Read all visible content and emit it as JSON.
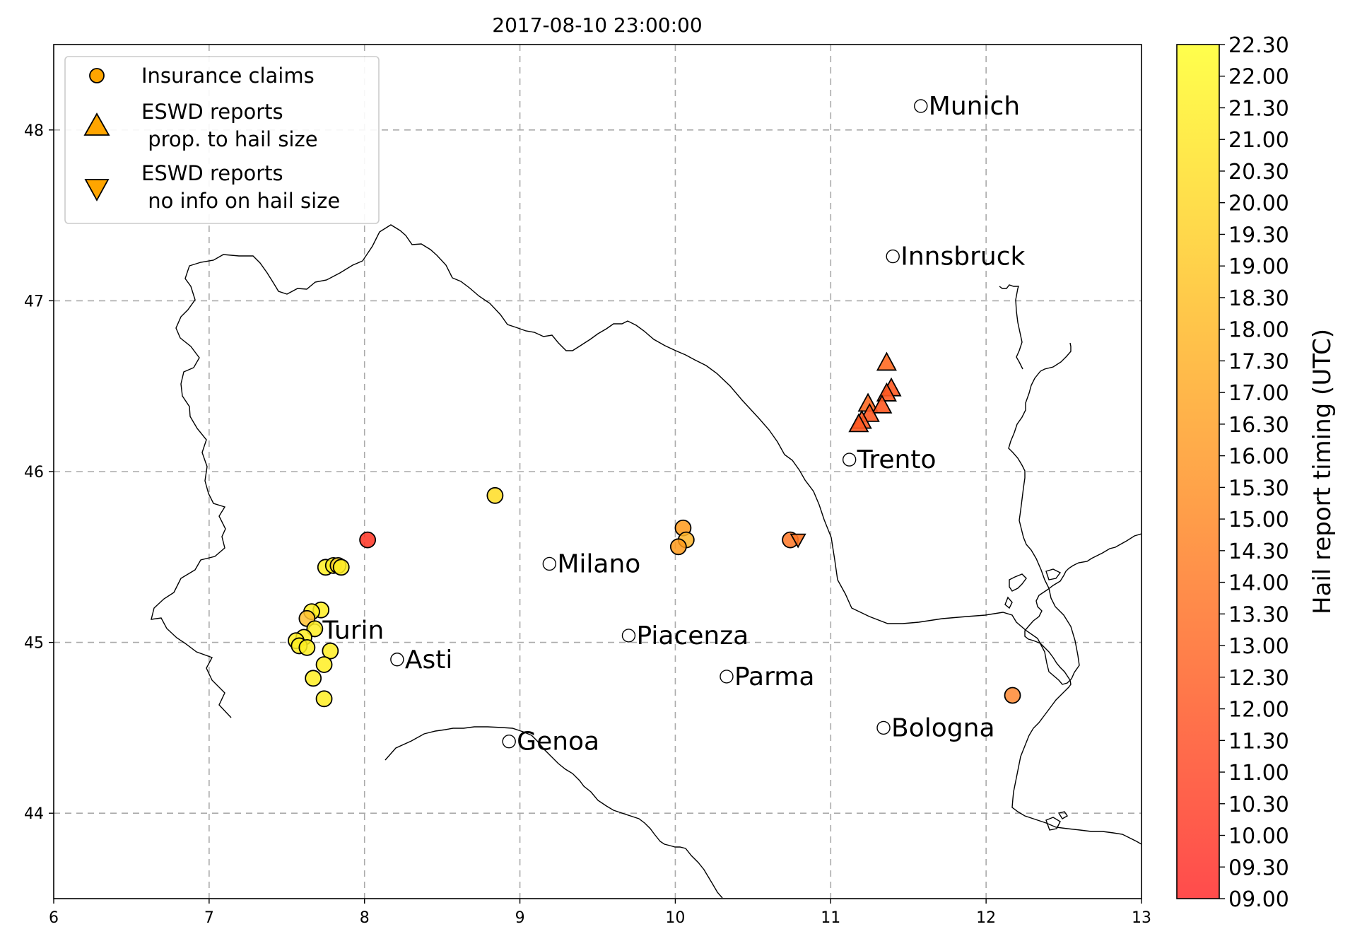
{
  "title": "2017-08-10 23:00:00",
  "legend": {
    "items": [
      {
        "lines": [
          "Insurance claims"
        ],
        "marker": "circle",
        "color": "#FFA500"
      },
      {
        "lines": [
          "ESWD reports",
          " prop. to hail size"
        ],
        "marker": "triangle-up",
        "color": "#FFA500"
      },
      {
        "lines": [
          "ESWD reports",
          " no info on hail size"
        ],
        "marker": "triangle-down",
        "color": "#FFA500"
      }
    ]
  },
  "colorbar": {
    "label": "Hail report timing (UTC)",
    "ticks": [
      "09.00",
      "09.30",
      "10.00",
      "10.30",
      "11.00",
      "11.30",
      "12.00",
      "12.30",
      "13.00",
      "13.30",
      "14.00",
      "14.30",
      "15.00",
      "15.30",
      "16.00",
      "16.30",
      "17.00",
      "17.30",
      "18.00",
      "18.30",
      "19.00",
      "19.30",
      "20.00",
      "20.30",
      "21.00",
      "21.30",
      "22.00",
      "22.30"
    ],
    "color_low": "#FF3333",
    "color_high": "#FFFF33"
  },
  "chart_data": {
    "type": "scatter",
    "title": "2017-08-10 23:00:00",
    "xlabel": "",
    "ylabel": "",
    "xlim": [
      6,
      13
    ],
    "ylim": [
      43.5,
      48.5
    ],
    "grid": true,
    "legend_position": "upper-left",
    "x_ticks": [
      "6",
      "7",
      "8",
      "9",
      "10",
      "11",
      "12",
      "13"
    ],
    "y_ticks": [
      "44",
      "45",
      "46",
      "47",
      "48"
    ],
    "cities": [
      {
        "name": "Munich",
        "lon": 11.58,
        "lat": 48.14
      },
      {
        "name": "Innsbruck",
        "lon": 11.4,
        "lat": 47.26
      },
      {
        "name": "Trento",
        "lon": 11.12,
        "lat": 46.07
      },
      {
        "name": "Milano",
        "lon": 9.19,
        "lat": 45.46
      },
      {
        "name": "Turin",
        "lon": 7.68,
        "lat": 45.07
      },
      {
        "name": "Asti",
        "lon": 8.21,
        "lat": 44.9
      },
      {
        "name": "Piacenza",
        "lon": 9.7,
        "lat": 45.04
      },
      {
        "name": "Parma",
        "lon": 10.33,
        "lat": 44.8
      },
      {
        "name": "Genoa",
        "lon": 8.93,
        "lat": 44.42
      },
      {
        "name": "Bologna",
        "lon": 11.34,
        "lat": 44.5
      }
    ],
    "insurance_claims": [
      {
        "lon": 8.84,
        "lat": 45.86,
        "color": "#FFDD22"
      },
      {
        "lon": 8.02,
        "lat": 45.6,
        "color": "#FF3322"
      },
      {
        "lon": 10.05,
        "lat": 45.67,
        "color": "#FF9A1A"
      },
      {
        "lon": 10.07,
        "lat": 45.6,
        "color": "#FFB52A"
      },
      {
        "lon": 10.02,
        "lat": 45.56,
        "color": "#FF9A1A"
      },
      {
        "lon": 10.74,
        "lat": 45.6,
        "color": "#FF7726"
      },
      {
        "lon": 12.17,
        "lat": 44.69,
        "color": "#FF8833"
      },
      {
        "lon": 7.75,
        "lat": 45.44,
        "color": "#FFEE22"
      },
      {
        "lon": 7.8,
        "lat": 45.45,
        "color": "#FFEE22"
      },
      {
        "lon": 7.83,
        "lat": 45.45,
        "color": "#FFD030"
      },
      {
        "lon": 7.85,
        "lat": 45.44,
        "color": "#FFEE22"
      },
      {
        "lon": 7.72,
        "lat": 45.19,
        "color": "#FFEE22"
      },
      {
        "lon": 7.66,
        "lat": 45.18,
        "color": "#FFEE22"
      },
      {
        "lon": 7.63,
        "lat": 45.14,
        "color": "#FFC030"
      },
      {
        "lon": 7.68,
        "lat": 45.08,
        "color": "#FFEE22"
      },
      {
        "lon": 7.61,
        "lat": 45.03,
        "color": "#FFEE22"
      },
      {
        "lon": 7.56,
        "lat": 45.01,
        "color": "#FFEE22"
      },
      {
        "lon": 7.58,
        "lat": 44.98,
        "color": "#FFEE22"
      },
      {
        "lon": 7.63,
        "lat": 44.97,
        "color": "#FFEE22"
      },
      {
        "lon": 7.78,
        "lat": 44.95,
        "color": "#FFEE22"
      },
      {
        "lon": 7.74,
        "lat": 44.87,
        "color": "#FFEE22"
      },
      {
        "lon": 7.67,
        "lat": 44.79,
        "color": "#FFEE22"
      },
      {
        "lon": 7.74,
        "lat": 44.67,
        "color": "#FFEE22"
      }
    ],
    "eswd_prop_hail_size": [
      {
        "lon": 11.36,
        "lat": 46.64,
        "color": "#FF6A22"
      },
      {
        "lon": 11.39,
        "lat": 46.49,
        "color": "#FF5A22"
      },
      {
        "lon": 11.36,
        "lat": 46.46,
        "color": "#FF5A22"
      },
      {
        "lon": 11.24,
        "lat": 46.4,
        "color": "#FF6A22"
      },
      {
        "lon": 11.33,
        "lat": 46.39,
        "color": "#FF5A22"
      },
      {
        "lon": 11.25,
        "lat": 46.34,
        "color": "#FF5A22"
      },
      {
        "lon": 11.2,
        "lat": 46.3,
        "color": "#FF5A22"
      },
      {
        "lon": 11.18,
        "lat": 46.28,
        "color": "#FF5A22"
      }
    ],
    "eswd_no_info_hail_size": [
      {
        "lon": 10.79,
        "lat": 45.6,
        "color": "#FF7726"
      }
    ]
  }
}
